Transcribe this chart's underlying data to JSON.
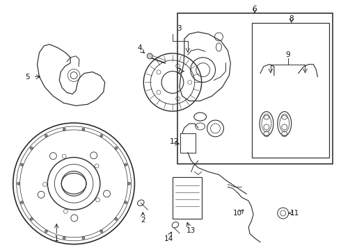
{
  "bg_color": "#ffffff",
  "fig_w": 4.9,
  "fig_h": 3.6,
  "dpi": 100
}
